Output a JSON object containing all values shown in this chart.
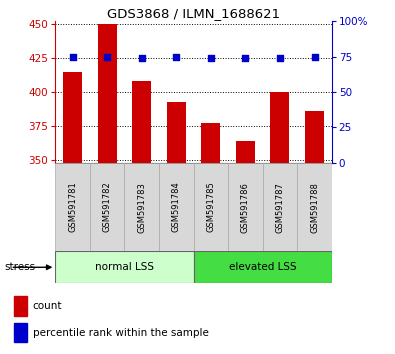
{
  "title": "GDS3868 / ILMN_1688621",
  "samples": [
    "GSM591781",
    "GSM591782",
    "GSM591783",
    "GSM591784",
    "GSM591785",
    "GSM591786",
    "GSM591787",
    "GSM591788"
  ],
  "counts": [
    415,
    450,
    408,
    393,
    377,
    364,
    400,
    386
  ],
  "percentiles": [
    75,
    75,
    74,
    75,
    74,
    74,
    74,
    75
  ],
  "ylim_left": [
    348,
    452
  ],
  "ylim_right": [
    0,
    100
  ],
  "yticks_left": [
    350,
    375,
    400,
    425,
    450
  ],
  "yticks_right": [
    0,
    25,
    50,
    75,
    100
  ],
  "bar_color": "#cc0000",
  "dot_color": "#0000cc",
  "bar_width": 0.55,
  "groups": [
    {
      "label": "normal LSS",
      "start": 0,
      "end": 3,
      "color": "#ccffcc"
    },
    {
      "label": "elevated LSS",
      "start": 4,
      "end": 7,
      "color": "#44dd44"
    }
  ],
  "stress_label": "stress",
  "left_axis_color": "#cc0000",
  "right_axis_color": "#0000cc",
  "legend_count_label": "count",
  "legend_percentile_label": "percentile rank within the sample"
}
